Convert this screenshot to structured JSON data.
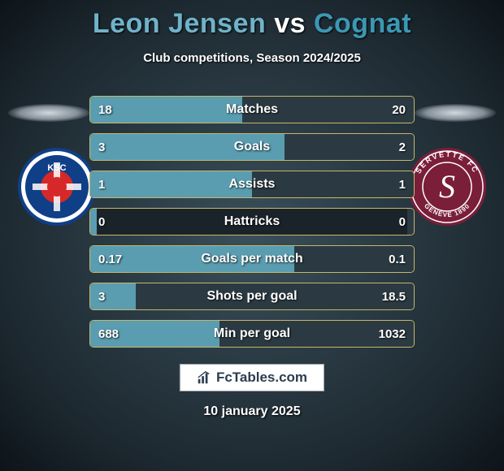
{
  "title": {
    "player1": "Leon Jensen",
    "vs": "vs",
    "player2": "Cognat",
    "p1_color": "#6fb3c9",
    "vs_color": "#ffffff",
    "p2_color": "#3b98b4"
  },
  "subtitle": "Club competitions, Season 2024/2025",
  "colors": {
    "p1_fill": "#5a9db0",
    "p2_fill": "#2b3a42",
    "bar_border": "#c4b86a"
  },
  "club1": {
    "name": "KSC",
    "bg": "#0f3f87",
    "ring": "#ffffff",
    "inner": "#d62828"
  },
  "club2": {
    "name": "Servette FC",
    "bg": "#7a1e3a",
    "ring_text": "SERVETTE FC",
    "ring_text2": "GENÈVE 1890",
    "letter": "S"
  },
  "stats": [
    {
      "label": "Matches",
      "v1": "18",
      "v2": "20",
      "f1": 0.47,
      "f2": 0.53
    },
    {
      "label": "Goals",
      "v1": "3",
      "v2": "2",
      "f1": 0.6,
      "f2": 0.4
    },
    {
      "label": "Assists",
      "v1": "1",
      "v2": "1",
      "f1": 0.5,
      "f2": 0.5
    },
    {
      "label": "Hattricks",
      "v1": "0",
      "v2": "0",
      "f1": 0.02,
      "f2": 0.02
    },
    {
      "label": "Goals per match",
      "v1": "0.17",
      "v2": "0.1",
      "f1": 0.63,
      "f2": 0.37
    },
    {
      "label": "Shots per goal",
      "v1": "3",
      "v2": "18.5",
      "f1": 0.14,
      "f2": 0.86
    },
    {
      "label": "Min per goal",
      "v1": "688",
      "v2": "1032",
      "f1": 0.4,
      "f2": 0.6
    }
  ],
  "brand": "FcTables.com",
  "date": "10 january 2025"
}
